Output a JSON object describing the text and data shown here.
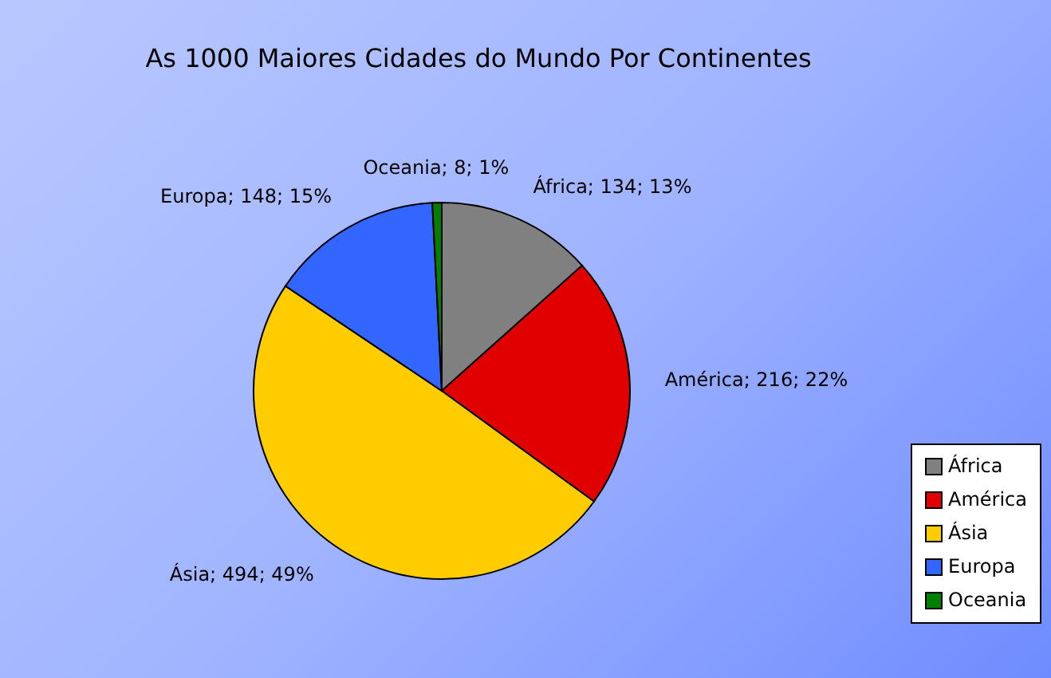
{
  "chart_data": {
    "type": "pie",
    "title": "As 1000 Maiores Cidades do Mundo Por Continentes",
    "categories": [
      "África",
      "América",
      "Ásia",
      "Europa",
      "Oceania"
    ],
    "values": [
      134,
      216,
      494,
      148,
      8
    ],
    "colors": [
      "#808080",
      "#e00000",
      "#ffcc00",
      "#3366ff",
      "#008000"
    ],
    "value_labels": [
      "África; 134; 13%",
      "América; 216; 22%",
      "Ásia; 494; 49%",
      "Europa; 148; 15%",
      "Oceania; 8; 1%"
    ],
    "legend": "right"
  }
}
